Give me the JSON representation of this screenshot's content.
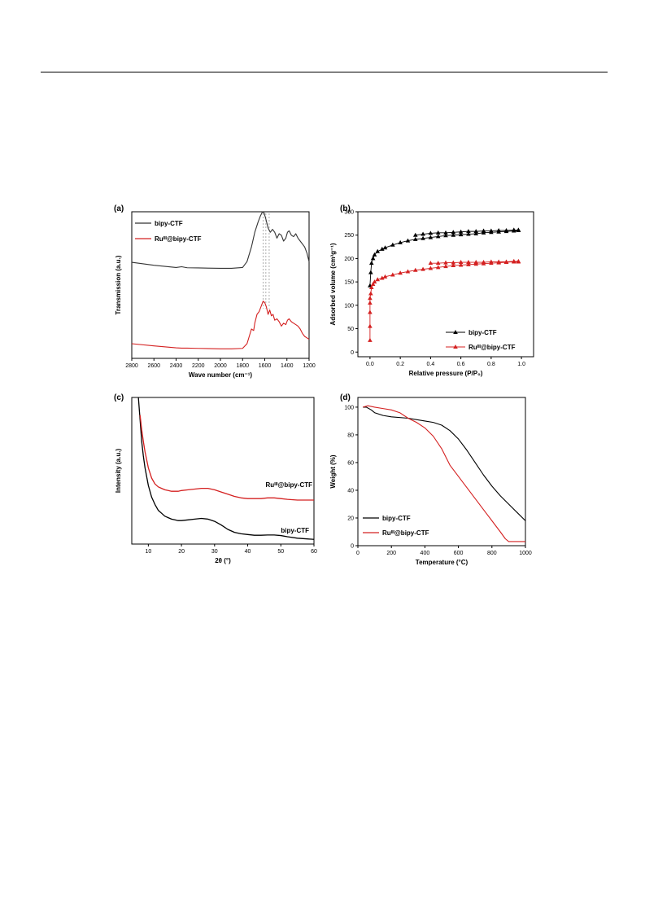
{
  "page": {},
  "chart_data": [
    {
      "panel_label": "(a)",
      "type": "line",
      "xlabel": "Wave number (cm⁻¹)",
      "ylabel": "Transmission (a.u.)",
      "xlim": [
        2800,
        1200
      ],
      "x_reversed": true,
      "xticks": [
        2800,
        2600,
        2400,
        2200,
        2000,
        1800,
        1600,
        1400,
        1200
      ],
      "ylim": [
        0,
        1
      ],
      "yticks_shown": false,
      "legend_position": "top-left",
      "reference_lines_x": [
        1615,
        1590,
        1560
      ],
      "series": [
        {
          "name": "bipy-CTF",
          "color": "#333333",
          "x": [
            2800,
            2600,
            2400,
            2350,
            2300,
            2200,
            2000,
            1900,
            1800,
            1760,
            1720,
            1690,
            1660,
            1640,
            1620,
            1605,
            1590,
            1570,
            1550,
            1530,
            1510,
            1490,
            1470,
            1450,
            1430,
            1410,
            1395,
            1380,
            1360,
            1340,
            1320,
            1300,
            1280,
            1260,
            1240,
            1220,
            1200
          ],
          "y": [
            0.655,
            0.635,
            0.62,
            0.625,
            0.618,
            0.617,
            0.614,
            0.614,
            0.62,
            0.66,
            0.76,
            0.86,
            0.93,
            0.97,
            1.0,
            0.99,
            0.95,
            0.89,
            0.86,
            0.88,
            0.86,
            0.82,
            0.85,
            0.84,
            0.8,
            0.82,
            0.86,
            0.87,
            0.84,
            0.83,
            0.85,
            0.82,
            0.8,
            0.78,
            0.76,
            0.72,
            0.66
          ]
        },
        {
          "name": "Ruᴵᴵᴵ@bipy-CTF",
          "color": "#d42020",
          "x": [
            2800,
            2600,
            2400,
            2350,
            2300,
            2200,
            2000,
            1900,
            1800,
            1760,
            1740,
            1720,
            1700,
            1690,
            1670,
            1650,
            1630,
            1615,
            1600,
            1585,
            1570,
            1555,
            1540,
            1525,
            1510,
            1490,
            1470,
            1450,
            1430,
            1410,
            1395,
            1380,
            1360,
            1340,
            1320,
            1300,
            1280,
            1260,
            1240,
            1220,
            1200
          ],
          "y": [
            0.1,
            0.085,
            0.072,
            0.07,
            0.07,
            0.068,
            0.065,
            0.065,
            0.068,
            0.1,
            0.15,
            0.2,
            0.19,
            0.24,
            0.3,
            0.32,
            0.36,
            0.39,
            0.38,
            0.35,
            0.3,
            0.33,
            0.29,
            0.3,
            0.26,
            0.27,
            0.25,
            0.22,
            0.24,
            0.23,
            0.26,
            0.27,
            0.25,
            0.24,
            0.23,
            0.22,
            0.2,
            0.17,
            0.15,
            0.14,
            0.13
          ]
        }
      ]
    },
    {
      "panel_label": "(b)",
      "type": "scatter",
      "xlabel": "Relative pressure (P/P₀)",
      "ylabel": "Adsorbed volume (cm³g⁻¹)",
      "xlim": [
        -0.08,
        1.08
      ],
      "xticks": [
        0.0,
        0.2,
        0.4,
        0.6,
        0.8,
        1.0
      ],
      "ylim": [
        -10,
        300
      ],
      "yticks": [
        0,
        50,
        100,
        150,
        200,
        250,
        300
      ],
      "legend_position": "bottom-right",
      "series": [
        {
          "name": "bipy-CTF",
          "color": "#000000",
          "x": [
            0.0,
            0.005,
            0.01,
            0.02,
            0.03,
            0.05,
            0.08,
            0.1,
            0.15,
            0.2,
            0.25,
            0.3,
            0.35,
            0.4,
            0.45,
            0.5,
            0.55,
            0.6,
            0.65,
            0.7,
            0.75,
            0.8,
            0.85,
            0.9,
            0.95,
            0.98,
            0.98,
            0.95,
            0.9,
            0.85,
            0.8,
            0.75,
            0.7,
            0.65,
            0.6,
            0.55,
            0.5,
            0.45,
            0.4,
            0.35,
            0.3
          ],
          "y": [
            142,
            170,
            190,
            200,
            208,
            215,
            220,
            223,
            229,
            234,
            238,
            241,
            243,
            245,
            247,
            249,
            250,
            251,
            252,
            253,
            255,
            256,
            257,
            258,
            259,
            260,
            261,
            261,
            260,
            260,
            259,
            259,
            258,
            258,
            257,
            256,
            255,
            255,
            254,
            252,
            250
          ]
        },
        {
          "name": "Ruᴵᴵᴵ@bipy-CTF",
          "color": "#d42020",
          "x": [
            0.0,
            0.0,
            0.0,
            0.0,
            0.0,
            0.005,
            0.01,
            0.02,
            0.03,
            0.05,
            0.08,
            0.1,
            0.15,
            0.2,
            0.25,
            0.3,
            0.35,
            0.4,
            0.45,
            0.5,
            0.55,
            0.6,
            0.65,
            0.7,
            0.75,
            0.8,
            0.85,
            0.9,
            0.95,
            0.98,
            0.98,
            0.95,
            0.9,
            0.85,
            0.8,
            0.75,
            0.7,
            0.65,
            0.6,
            0.55,
            0.5,
            0.45,
            0.4
          ],
          "y": [
            25,
            55,
            85,
            105,
            115,
            125,
            138,
            145,
            150,
            155,
            158,
            161,
            165,
            169,
            172,
            175,
            177,
            179,
            181,
            183,
            185,
            186,
            187,
            188,
            189,
            190,
            191,
            192,
            193,
            193,
            194,
            194,
            193,
            193,
            193,
            192,
            192,
            192,
            192,
            191,
            191,
            190,
            190
          ]
        }
      ]
    },
    {
      "panel_label": "(c)",
      "type": "line",
      "xlabel": "2θ (°)",
      "ylabel": "Intensity (a.u.)",
      "xlim": [
        5,
        60
      ],
      "xticks": [
        10,
        20,
        30,
        40,
        50,
        60
      ],
      "ylim": [
        0,
        1
      ],
      "yticks_shown": false,
      "annotations": [
        "Ruᴵᴵᴵ@bipy-CTF",
        "bipy-CTF"
      ],
      "series": [
        {
          "name": "bipy-CTF",
          "color": "#000000",
          "x": [
            7,
            7.5,
            8,
            8.5,
            9,
            10,
            11,
            12,
            13,
            14,
            15,
            16,
            17,
            18,
            19,
            20,
            22,
            24,
            26,
            28,
            30,
            32,
            34,
            36,
            38,
            40,
            42,
            44,
            46,
            48,
            50,
            52,
            55,
            58,
            60
          ],
          "y": [
            1.0,
            0.85,
            0.7,
            0.6,
            0.52,
            0.4,
            0.32,
            0.27,
            0.23,
            0.21,
            0.19,
            0.18,
            0.17,
            0.165,
            0.16,
            0.16,
            0.165,
            0.17,
            0.175,
            0.17,
            0.155,
            0.13,
            0.1,
            0.08,
            0.07,
            0.065,
            0.06,
            0.06,
            0.062,
            0.062,
            0.058,
            0.05,
            0.04,
            0.035,
            0.032
          ]
        },
        {
          "name": "Ruᴵᴵᴵ@bipy-CTF",
          "color": "#d42020",
          "x": [
            7.5,
            8,
            8.5,
            9,
            10,
            11,
            12,
            13,
            14,
            15,
            16,
            17,
            18,
            19,
            20,
            22,
            24,
            26,
            28,
            30,
            32,
            34,
            36,
            38,
            40,
            42,
            44,
            46,
            48,
            50,
            52,
            55,
            58,
            60
          ],
          "y": [
            0.88,
            0.78,
            0.7,
            0.63,
            0.52,
            0.45,
            0.41,
            0.39,
            0.38,
            0.37,
            0.365,
            0.36,
            0.36,
            0.36,
            0.365,
            0.37,
            0.375,
            0.38,
            0.38,
            0.37,
            0.355,
            0.34,
            0.325,
            0.315,
            0.31,
            0.31,
            0.31,
            0.315,
            0.315,
            0.31,
            0.305,
            0.3,
            0.3,
            0.3
          ]
        }
      ]
    },
    {
      "panel_label": "(d)",
      "type": "line",
      "xlabel": "Temperature (°C)",
      "ylabel": "Weight (%)",
      "xlim": [
        0,
        1000
      ],
      "xticks": [
        0,
        200,
        400,
        600,
        800,
        1000
      ],
      "ylim": [
        0,
        107
      ],
      "yticks": [
        0,
        20,
        40,
        60,
        80,
        100
      ],
      "legend_position": "bottom-left",
      "series": [
        {
          "name": "bipy-CTF",
          "color": "#000000",
          "x": [
            30,
            50,
            80,
            100,
            150,
            200,
            300,
            400,
            450,
            500,
            550,
            600,
            650,
            700,
            750,
            800,
            850,
            900,
            950,
            1000
          ],
          "y": [
            100,
            100,
            98,
            96,
            94,
            93,
            92,
            90,
            89,
            87,
            83,
            77,
            69,
            60,
            51,
            43,
            36,
            30,
            24,
            18
          ]
        },
        {
          "name": "Ruᴵᴵᴵ@bipy-CTF",
          "color": "#d42020",
          "x": [
            30,
            60,
            100,
            150,
            200,
            250,
            300,
            350,
            400,
            450,
            500,
            550,
            600,
            650,
            700,
            750,
            800,
            850,
            880,
            900,
            950,
            1000
          ],
          "y": [
            100,
            101,
            100,
            99,
            98,
            96,
            92,
            89,
            85,
            79,
            70,
            58,
            50,
            42,
            34,
            26,
            18,
            10,
            5,
            3,
            3,
            3
          ]
        }
      ]
    }
  ]
}
